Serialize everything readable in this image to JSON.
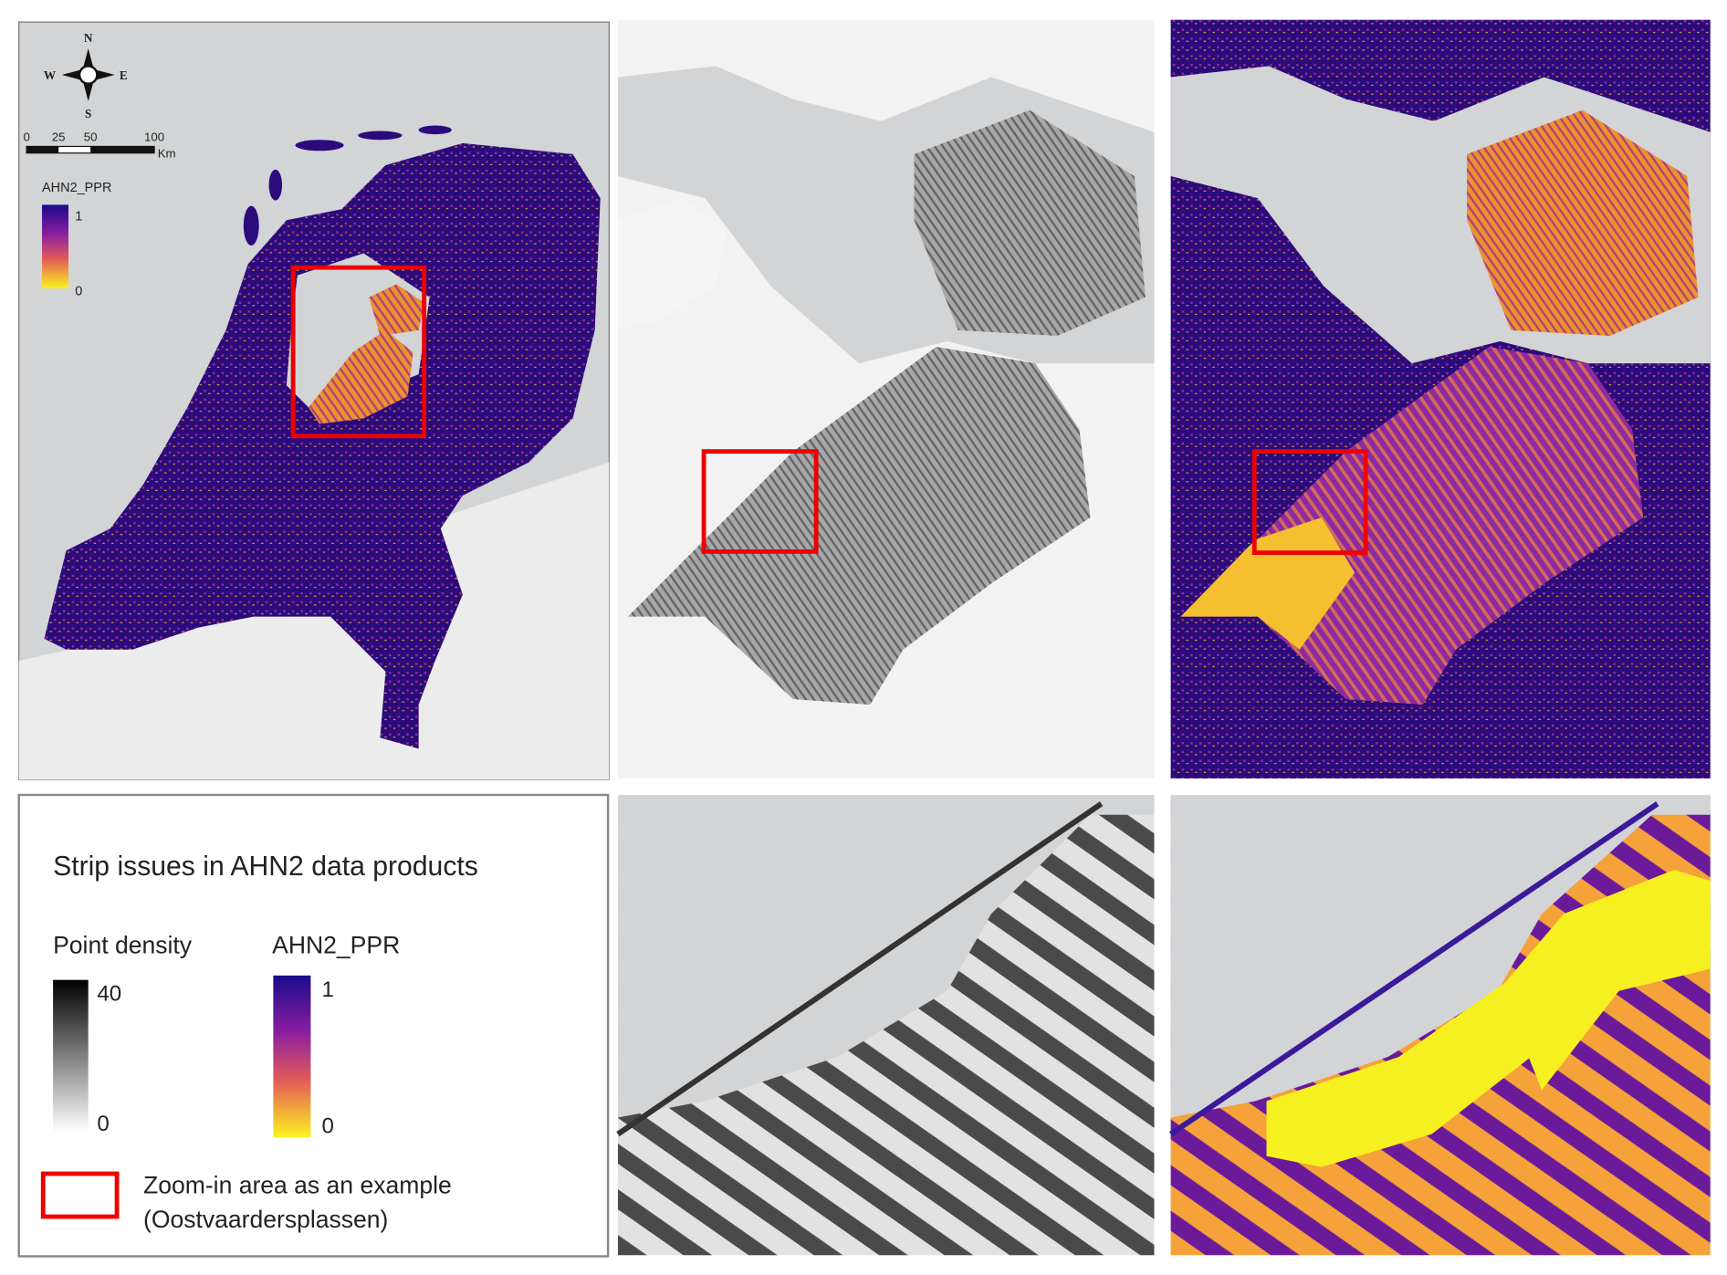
{
  "overview_map": {
    "compass": {
      "north": "N",
      "east": "E",
      "south": "S",
      "west": "W"
    },
    "scale_bar": {
      "labels": [
        "0",
        "25",
        "50",
        "100"
      ],
      "unit": "Km"
    },
    "legend": {
      "title": "AHN2_PPR",
      "max": "1",
      "min": "0"
    }
  },
  "legend_panel": {
    "title": "Strip issues in AHN2 data products",
    "point_density": {
      "title": "Point density",
      "max": "40",
      "min": "0"
    },
    "ppr": {
      "title": "AHN2_PPR",
      "max": "1",
      "min": "0"
    },
    "zoom_box": {
      "line1": "Zoom-in area as an example",
      "line2": "(Oostvaardersplassen)"
    }
  }
}
